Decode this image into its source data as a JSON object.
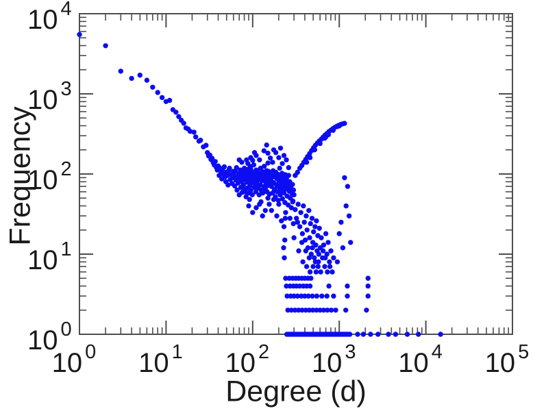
{
  "figure": {
    "background": "#ffffff"
  },
  "chart_data": {
    "type": "scatter",
    "title": "",
    "xlabel": "Degree (d)",
    "ylabel": "Frequency",
    "x_scale": "log",
    "y_scale": "log",
    "xlim": [
      1,
      100000
    ],
    "ylim": [
      1,
      10000
    ],
    "x_tick_exponents": [
      0,
      1,
      2,
      3,
      4,
      5
    ],
    "y_tick_exponents": [
      0,
      1,
      2,
      3,
      4
    ],
    "tick_base": "10",
    "grid": false,
    "legend": null,
    "marker_color": "#0d0df2",
    "axis_color": "#4d4d4d",
    "text_color": "#1a1a1a",
    "points": [
      [
        1,
        5500
      ],
      [
        2,
        3980
      ],
      [
        3,
        1920
      ],
      [
        4,
        1560
      ],
      [
        5,
        1710
      ],
      [
        6,
        1480
      ],
      [
        7,
        1210
      ],
      [
        8,
        1040
      ],
      [
        9,
        900
      ],
      [
        10,
        800
      ],
      [
        11,
        830
      ],
      [
        12,
        635
      ],
      [
        13,
        590
      ],
      [
        14,
        520
      ],
      [
        15,
        468
      ],
      [
        16,
        430
      ],
      [
        17,
        375
      ],
      [
        18,
        364
      ],
      [
        19,
        340
      ],
      [
        21,
        333
      ],
      [
        22,
        290
      ],
      [
        24,
        257
      ],
      [
        25,
        264
      ],
      [
        27,
        218
      ],
      [
        29,
        228
      ],
      [
        30,
        185
      ],
      [
        31,
        168
      ],
      [
        32,
        172
      ],
      [
        33,
        152
      ],
      [
        34,
        157
      ],
      [
        35,
        139
      ],
      [
        36,
        130
      ],
      [
        37,
        143
      ],
      [
        38,
        121
      ],
      [
        39,
        112
      ],
      [
        40,
        126
      ],
      [
        41,
        96
      ],
      [
        42,
        118
      ],
      [
        43,
        108
      ],
      [
        44,
        87
      ],
      [
        45,
        114
      ],
      [
        46,
        100
      ],
      [
        47,
        123
      ],
      [
        48,
        92
      ],
      [
        49,
        80
      ],
      [
        50,
        105
      ],
      [
        51,
        96
      ],
      [
        52,
        73
      ],
      [
        53,
        111
      ],
      [
        54,
        118
      ],
      [
        55,
        85
      ],
      [
        56,
        98
      ],
      [
        58,
        76
      ],
      [
        59,
        90
      ],
      [
        60,
        108
      ],
      [
        61,
        95
      ],
      [
        62,
        71
      ],
      [
        63,
        108
      ],
      [
        64,
        84
      ],
      [
        65,
        120
      ],
      [
        66,
        63
      ],
      [
        67,
        92
      ],
      [
        68,
        77
      ],
      [
        69,
        101
      ],
      [
        70,
        55
      ],
      [
        71,
        88
      ],
      [
        72,
        112
      ],
      [
        73,
        68
      ],
      [
        74,
        96
      ],
      [
        75,
        80
      ],
      [
        76,
        59
      ],
      [
        77,
        104
      ],
      [
        78,
        73
      ],
      [
        79,
        91
      ],
      [
        80,
        118
      ],
      [
        81,
        64
      ],
      [
        82,
        86
      ],
      [
        83,
        99
      ],
      [
        84,
        52
      ],
      [
        85,
        108
      ],
      [
        86,
        79
      ],
      [
        87,
        67
      ],
      [
        88,
        93
      ],
      [
        89,
        115
      ],
      [
        90,
        58
      ],
      [
        91,
        85
      ],
      [
        92,
        101
      ],
      [
        93,
        71
      ],
      [
        94,
        124
      ],
      [
        95,
        62
      ],
      [
        96,
        90
      ],
      [
        97,
        78
      ],
      [
        98,
        106
      ],
      [
        99,
        55
      ],
      [
        100,
        95
      ],
      [
        102,
        83
      ],
      [
        103,
        130
      ],
      [
        104,
        68
      ],
      [
        105,
        99
      ],
      [
        107,
        75
      ],
      [
        108,
        88
      ],
      [
        109,
        60
      ],
      [
        110,
        112
      ],
      [
        112,
        80
      ],
      [
        113,
        95
      ],
      [
        115,
        67
      ],
      [
        116,
        104
      ],
      [
        118,
        86
      ],
      [
        119,
        55
      ],
      [
        120,
        92
      ],
      [
        122,
        73
      ],
      [
        123,
        118
      ],
      [
        125,
        63
      ],
      [
        126,
        98
      ],
      [
        128,
        82
      ],
      [
        130,
        107
      ],
      [
        131,
        58
      ],
      [
        133,
        90
      ],
      [
        135,
        70
      ],
      [
        136,
        125
      ],
      [
        138,
        84
      ],
      [
        140,
        65
      ],
      [
        141,
        99
      ],
      [
        143,
        77
      ],
      [
        145,
        110
      ],
      [
        147,
        60
      ],
      [
        148,
        88
      ],
      [
        150,
        137
      ],
      [
        152,
        72
      ],
      [
        154,
        95
      ],
      [
        156,
        56
      ],
      [
        158,
        81
      ],
      [
        160,
        103
      ],
      [
        95,
        160
      ],
      [
        105,
        185
      ],
      [
        120,
        150
      ],
      [
        135,
        195
      ],
      [
        150,
        182
      ],
      [
        160,
        158
      ],
      [
        145,
        230
      ],
      [
        110,
        170
      ],
      [
        85,
        150
      ],
      [
        75,
        140
      ],
      [
        70,
        150
      ],
      [
        88,
        135
      ],
      [
        100,
        148
      ],
      [
        90,
        40
      ],
      [
        110,
        38
      ],
      [
        125,
        45
      ],
      [
        140,
        35
      ],
      [
        155,
        42
      ],
      [
        100,
        33
      ],
      [
        130,
        30
      ],
      [
        82,
        60
      ],
      [
        95,
        115
      ],
      [
        108,
        72
      ],
      [
        118,
        98
      ],
      [
        128,
        62
      ],
      [
        142,
        88
      ],
      [
        152,
        108
      ],
      [
        166,
        78
      ],
      [
        178,
        96
      ],
      [
        192,
        70
      ],
      [
        205,
        88
      ],
      [
        215,
        60
      ],
      [
        228,
        80
      ],
      [
        238,
        98
      ],
      [
        252,
        66
      ],
      [
        150,
        50
      ],
      [
        175,
        48
      ],
      [
        200,
        42
      ],
      [
        120,
        42
      ],
      [
        92,
        48
      ],
      [
        162,
        85
      ],
      [
        165,
        70
      ],
      [
        168,
        95
      ],
      [
        170,
        58
      ],
      [
        172,
        110
      ],
      [
        175,
        78
      ],
      [
        178,
        64
      ],
      [
        180,
        92
      ],
      [
        183,
        52
      ],
      [
        185,
        105
      ],
      [
        188,
        73
      ],
      [
        190,
        88
      ],
      [
        193,
        60
      ],
      [
        195,
        99
      ],
      [
        198,
        47
      ],
      [
        200,
        82
      ],
      [
        203,
        68
      ],
      [
        205,
        118
      ],
      [
        208,
        55
      ],
      [
        210,
        90
      ],
      [
        213,
        75
      ],
      [
        216,
        63
      ],
      [
        218,
        102
      ],
      [
        221,
        49
      ],
      [
        224,
        85
      ],
      [
        227,
        70
      ],
      [
        230,
        58
      ],
      [
        233,
        94
      ],
      [
        236,
        44
      ],
      [
        240,
        78
      ],
      [
        243,
        65
      ],
      [
        246,
        88
      ],
      [
        250,
        53
      ],
      [
        253,
        72
      ],
      [
        257,
        41
      ],
      [
        260,
        96
      ],
      [
        264,
        61
      ],
      [
        268,
        80
      ],
      [
        272,
        50
      ],
      [
        276,
        68
      ],
      [
        280,
        38
      ],
      [
        284,
        57
      ],
      [
        288,
        74
      ],
      [
        292,
        46
      ],
      [
        296,
        63
      ],
      [
        300,
        55
      ],
      [
        170,
        140
      ],
      [
        185,
        185
      ],
      [
        200,
        160
      ],
      [
        220,
        135
      ],
      [
        245,
        150
      ],
      [
        175,
        200
      ],
      [
        210,
        210
      ],
      [
        260,
        120
      ],
      [
        230,
        170
      ],
      [
        165,
        35
      ],
      [
        190,
        30
      ],
      [
        215,
        26
      ],
      [
        240,
        33
      ],
      [
        270,
        28
      ],
      [
        295,
        24
      ],
      [
        310,
        96
      ],
      [
        330,
        105
      ],
      [
        350,
        118
      ],
      [
        370,
        128
      ],
      [
        390,
        140
      ],
      [
        410,
        152
      ],
      [
        430,
        165
      ],
      [
        455,
        180
      ],
      [
        480,
        196
      ],
      [
        505,
        212
      ],
      [
        530,
        228
      ],
      [
        560,
        244
      ],
      [
        590,
        258
      ],
      [
        620,
        272
      ],
      [
        650,
        288
      ],
      [
        685,
        305
      ],
      [
        720,
        320
      ],
      [
        760,
        338
      ],
      [
        800,
        352
      ],
      [
        845,
        368
      ],
      [
        890,
        382
      ],
      [
        940,
        395
      ],
      [
        990,
        405
      ],
      [
        1040,
        415
      ],
      [
        1095,
        422
      ],
      [
        1150,
        428
      ],
      [
        420,
        140
      ],
      [
        460,
        160
      ],
      [
        520,
        200
      ],
      [
        600,
        240
      ],
      [
        700,
        290
      ],
      [
        750,
        310
      ],
      [
        850,
        350
      ],
      [
        950,
        390
      ],
      [
        1000,
        398
      ],
      [
        680,
        280
      ],
      [
        1250,
        70
      ],
      [
        1150,
        90
      ],
      [
        1200,
        40
      ],
      [
        290,
        45
      ],
      [
        310,
        36
      ],
      [
        320,
        28
      ],
      [
        335,
        42
      ],
      [
        350,
        22
      ],
      [
        360,
        33
      ],
      [
        375,
        18
      ],
      [
        385,
        40
      ],
      [
        395,
        25
      ],
      [
        405,
        15
      ],
      [
        415,
        30
      ],
      [
        425,
        20
      ],
      [
        435,
        12
      ],
      [
        445,
        35
      ],
      [
        455,
        16
      ],
      [
        465,
        24
      ],
      [
        475,
        10
      ],
      [
        485,
        28
      ],
      [
        495,
        14
      ],
      [
        505,
        19
      ],
      [
        515,
        9
      ],
      [
        525,
        22
      ],
      [
        535,
        13
      ],
      [
        545,
        26
      ],
      [
        555,
        11
      ],
      [
        565,
        17
      ],
      [
        575,
        8
      ],
      [
        590,
        21
      ],
      [
        605,
        12
      ],
      [
        620,
        16
      ],
      [
        640,
        9
      ],
      [
        660,
        13
      ],
      [
        680,
        7
      ],
      [
        700,
        18
      ],
      [
        720,
        10
      ],
      [
        745,
        14
      ],
      [
        770,
        8
      ],
      [
        800,
        11
      ],
      [
        830,
        6
      ],
      [
        860,
        9
      ],
      [
        300,
        16
      ],
      [
        340,
        11
      ],
      [
        380,
        8
      ],
      [
        420,
        7
      ],
      [
        460,
        6
      ],
      [
        500,
        7
      ],
      [
        540,
        6
      ],
      [
        580,
        10
      ],
      [
        330,
        25
      ],
      [
        370,
        14
      ],
      [
        410,
        11
      ],
      [
        450,
        9
      ],
      [
        490,
        12
      ],
      [
        530,
        8
      ],
      [
        570,
        7
      ],
      [
        610,
        6
      ],
      [
        650,
        11
      ],
      [
        690,
        9
      ],
      [
        730,
        6
      ],
      [
        780,
        7
      ],
      [
        230,
        22
      ],
      [
        235,
        15
      ],
      [
        232,
        9
      ],
      [
        238,
        28
      ],
      [
        228,
        12
      ],
      [
        1300,
        30
      ],
      [
        1350,
        14
      ],
      [
        950,
        8
      ],
      [
        1000,
        18
      ],
      [
        1050,
        25
      ],
      [
        1100,
        12
      ],
      [
        240,
        5
      ],
      [
        265,
        5
      ],
      [
        290,
        5
      ],
      [
        315,
        5
      ],
      [
        340,
        5
      ],
      [
        370,
        5
      ],
      [
        400,
        5
      ],
      [
        435,
        5
      ],
      [
        470,
        5
      ],
      [
        2150,
        5
      ],
      [
        245,
        4
      ],
      [
        270,
        4
      ],
      [
        295,
        4
      ],
      [
        320,
        4
      ],
      [
        350,
        4
      ],
      [
        385,
        4
      ],
      [
        420,
        4
      ],
      [
        460,
        4
      ],
      [
        760,
        4
      ],
      [
        1240,
        4
      ],
      [
        2150,
        4
      ],
      [
        250,
        3
      ],
      [
        275,
        3
      ],
      [
        300,
        3
      ],
      [
        330,
        3
      ],
      [
        365,
        3
      ],
      [
        400,
        3
      ],
      [
        440,
        3
      ],
      [
        490,
        3
      ],
      [
        550,
        3
      ],
      [
        630,
        3
      ],
      [
        720,
        3
      ],
      [
        860,
        3
      ],
      [
        1240,
        3
      ],
      [
        2150,
        3
      ],
      [
        255,
        2
      ],
      [
        280,
        2
      ],
      [
        308,
        2
      ],
      [
        338,
        2
      ],
      [
        372,
        2
      ],
      [
        410,
        2
      ],
      [
        450,
        2
      ],
      [
        495,
        2
      ],
      [
        545,
        2
      ],
      [
        600,
        2
      ],
      [
        660,
        2
      ],
      [
        730,
        2
      ],
      [
        810,
        2
      ],
      [
        910,
        2
      ],
      [
        1190,
        2
      ],
      [
        2060,
        2
      ],
      [
        248,
        1
      ],
      [
        260,
        1
      ],
      [
        272,
        1
      ],
      [
        285,
        1
      ],
      [
        298,
        1
      ],
      [
        312,
        1
      ],
      [
        327,
        1
      ],
      [
        342,
        1
      ],
      [
        358,
        1
      ],
      [
        375,
        1
      ],
      [
        393,
        1
      ],
      [
        412,
        1
      ],
      [
        432,
        1
      ],
      [
        452,
        1
      ],
      [
        474,
        1
      ],
      [
        496,
        1
      ],
      [
        520,
        1
      ],
      [
        545,
        1
      ],
      [
        571,
        1
      ],
      [
        598,
        1
      ],
      [
        627,
        1
      ],
      [
        657,
        1
      ],
      [
        688,
        1
      ],
      [
        721,
        1
      ],
      [
        755,
        1
      ],
      [
        791,
        1
      ],
      [
        829,
        1
      ],
      [
        868,
        1
      ],
      [
        910,
        1
      ],
      [
        953,
        1
      ],
      [
        999,
        1
      ],
      [
        1047,
        1
      ],
      [
        1097,
        1
      ],
      [
        1150,
        1
      ],
      [
        1205,
        1
      ],
      [
        1263,
        1
      ],
      [
        1323,
        1
      ],
      [
        1630,
        1
      ],
      [
        1900,
        1
      ],
      [
        2300,
        1
      ],
      [
        2800,
        1
      ],
      [
        3700,
        1
      ],
      [
        4470,
        1
      ],
      [
        6100,
        1
      ],
      [
        8200,
        1
      ],
      [
        14800,
        1
      ]
    ]
  }
}
